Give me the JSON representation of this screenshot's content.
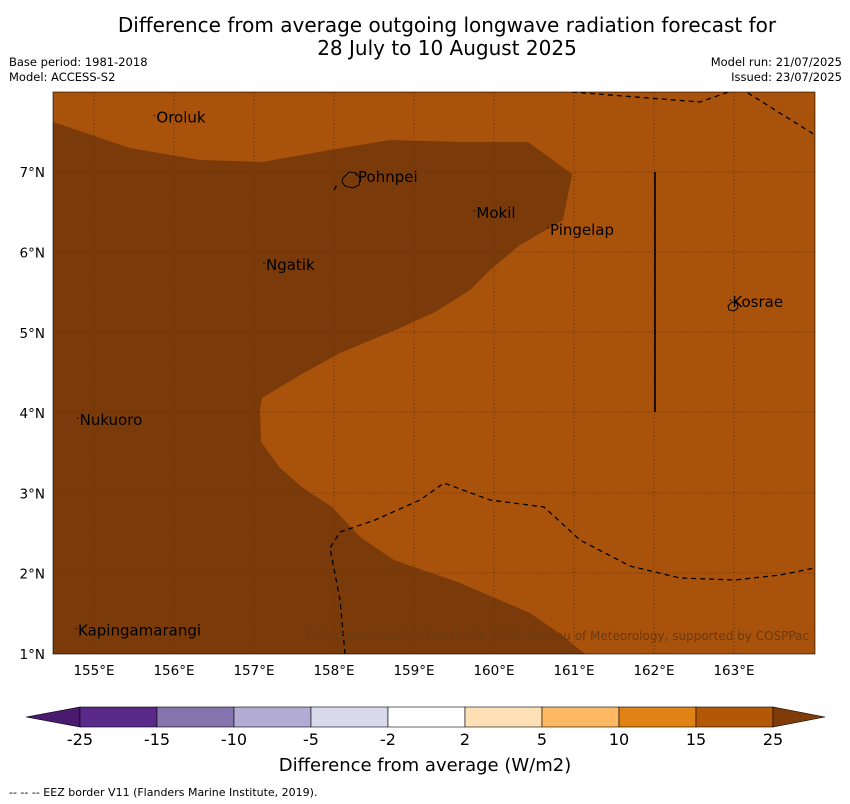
{
  "title": {
    "line1": "Difference from average outgoing longwave radiation forecast for",
    "line2": "28 July to 10 August 2025"
  },
  "meta": {
    "base_period": "Base period: 1981-2018",
    "model": "Model: ACCESS-S2",
    "model_run": "Model run: 21/07/2025",
    "issued": "Issued: 23/07/2025"
  },
  "map": {
    "lon_ticks": [
      "155°E",
      "156°E",
      "157°E",
      "158°E",
      "159°E",
      "160°E",
      "161°E",
      "162°E",
      "163°E"
    ],
    "lat_ticks": [
      "7°N",
      "6°N",
      "5°N",
      "4°N",
      "3°N",
      "2°N",
      "1°N"
    ],
    "places": [
      {
        "name": "Oroluk",
        "lon": 155.78,
        "lat": 7.62
      },
      {
        "name": "Pohnpei",
        "lon": 158.3,
        "lat": 6.88
      },
      {
        "name": "Mokil",
        "lon": 159.78,
        "lat": 6.43
      },
      {
        "name": "Pingelap",
        "lon": 160.7,
        "lat": 6.22
      },
      {
        "name": "Ngatik",
        "lon": 157.15,
        "lat": 5.78
      },
      {
        "name": "Kosrae",
        "lon": 162.98,
        "lat": 5.32
      },
      {
        "name": "Nukuoro",
        "lon": 154.82,
        "lat": 3.85
      },
      {
        "name": "Kapingamarangi",
        "lon": 154.8,
        "lat": 1.23
      }
    ],
    "copyright": "© Commonwealth of Australia 2025, Bureau of Meteorology, supported by COSPPac",
    "colors": {
      "above_15": "#a8520b",
      "above_25": "#7a3a0a",
      "grid": "#6b3608"
    }
  },
  "colorbar": {
    "boundaries": [
      "-25",
      "-15",
      "-10",
      "-5",
      "-2",
      "2",
      "5",
      "10",
      "15",
      "25"
    ],
    "colors": [
      "#4a1a6e",
      "#5a2a8a",
      "#8475ae",
      "#b2abd3",
      "#d9d9ec",
      "#ffffff",
      "#fee0b6",
      "#fdb863",
      "#e08214",
      "#b35806",
      "#7f3b08"
    ],
    "label": "Difference from average (W/m2)"
  },
  "footnote": "--  --  -- EEZ border V11 (Flanders Marine Institute, 2019)."
}
